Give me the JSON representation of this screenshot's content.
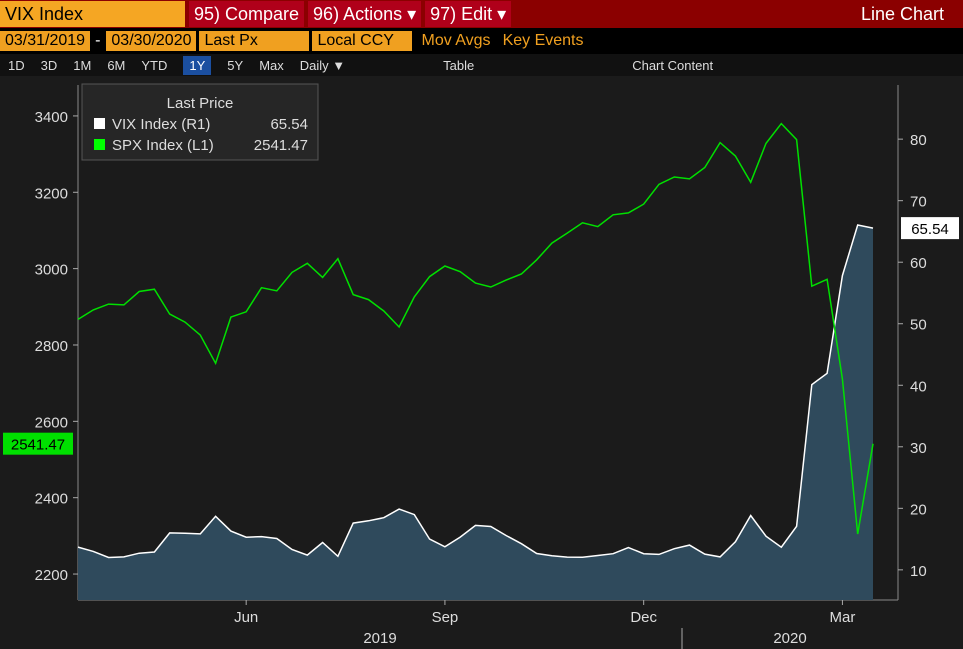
{
  "toolbar": {
    "ticker": "VIX Index",
    "compare": "95) Compare",
    "actions": "96) Actions ▾",
    "edit": "97) Edit ▾",
    "function": "Line Chart",
    "table": "Table",
    "chart_content": "Chart Content"
  },
  "settings": {
    "start_date": "03/31/2019",
    "separator": "-",
    "end_date": "03/30/2020",
    "price": "Last Px",
    "currency": "Local CCY",
    "mov_avgs": "Mov Avgs",
    "key_events": "Key Events"
  },
  "ranges": [
    "1D",
    "3D",
    "1M",
    "6M",
    "YTD",
    "1Y",
    "5Y",
    "Max",
    "Daily ▼"
  ],
  "chart_data": {
    "type": "line",
    "legend_title": "Last Price",
    "categories": [
      null,
      null,
      null,
      null,
      null,
      null,
      null,
      null,
      null,
      null,
      null,
      "Jun",
      null,
      null,
      null,
      null,
      null,
      null,
      null,
      null,
      null,
      null,
      null,
      null,
      "Sep",
      null,
      null,
      null,
      null,
      null,
      null,
      null,
      null,
      null,
      null,
      null,
      null,
      "Dec",
      null,
      null,
      null,
      null,
      null,
      null,
      null,
      null,
      null,
      null,
      null,
      null,
      "Mar",
      null,
      null
    ],
    "xgroups": [
      "2019",
      "2020"
    ],
    "ylim": [
      2132,
      3481
    ],
    "yticks": [
      2200,
      2400,
      2600,
      2800,
      3000,
      3200,
      3400
    ],
    "y2lim": [
      5.1,
      88.8
    ],
    "y2ticks": [
      10,
      20,
      30,
      40,
      50,
      60,
      70,
      80
    ],
    "series": [
      {
        "name": "VIX Index  (R1)",
        "color": "#ffffff",
        "fill": "#2f4a5c",
        "axis": "y2",
        "values": [
          13.7,
          13.0,
          12.0,
          12.1,
          12.7,
          12.9,
          16.0,
          15.96,
          15.85,
          18.7,
          16.3,
          15.3,
          15.4,
          15.1,
          13.3,
          12.4,
          14.45,
          12.2,
          17.6,
          17.97,
          18.47,
          19.87,
          18.98,
          15.0,
          13.74,
          15.32,
          17.22,
          17.04,
          15.58,
          14.25,
          12.65,
          12.3,
          12.07,
          12.05,
          12.34,
          12.62,
          13.62,
          12.63,
          12.51,
          13.43,
          14.02,
          12.56,
          12.1,
          14.56,
          18.84,
          15.47,
          13.68,
          17.08,
          40.11,
          41.94,
          57.83,
          66.04,
          65.54
        ]
      },
      {
        "name": "SPX Index  (L1)",
        "color": "#00e000",
        "values": [
          2867,
          2892,
          2907,
          2905,
          2940,
          2946,
          2881,
          2860,
          2826,
          2752,
          2873,
          2887,
          2950,
          2942,
          2990,
          3014,
          2977,
          3026,
          2932,
          2919,
          2889,
          2847,
          2926,
          2979,
          3007,
          2992,
          2962,
          2952,
          2970,
          2986,
          3023,
          3067,
          3093,
          3120,
          3110,
          3141,
          3146,
          3169,
          3221,
          3240,
          3235,
          3265,
          3330,
          3295,
          3226,
          3328,
          3380,
          3338,
          2954,
          2972,
          2711,
          2305,
          2541.47
        ]
      }
    ]
  }
}
